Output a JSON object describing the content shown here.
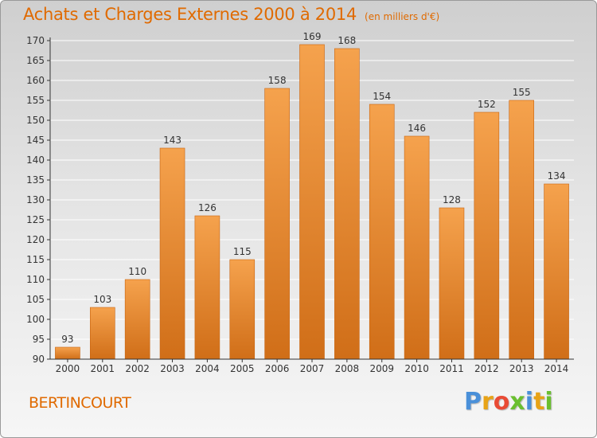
{
  "colors": {
    "accent": "#e06a00",
    "bar_light": "#f5a24d",
    "bar_dark": "#d06e18",
    "axis": "#333333",
    "grid": "#ffffff"
  },
  "chart_data": {
    "type": "bar",
    "title": "Achats et Charges Externes 2000 à 2014",
    "subtitle": "(en milliers d'€)",
    "categories": [
      "2000",
      "2001",
      "2002",
      "2003",
      "2004",
      "2005",
      "2006",
      "2007",
      "2008",
      "2009",
      "2010",
      "2011",
      "2012",
      "2013",
      "2014"
    ],
    "values": [
      93,
      103,
      110,
      143,
      126,
      115,
      158,
      169,
      168,
      154,
      146,
      128,
      152,
      155,
      134
    ],
    "ylim": [
      90,
      170
    ],
    "yticks": [
      90,
      95,
      100,
      105,
      110,
      115,
      120,
      125,
      130,
      135,
      140,
      145,
      150,
      155,
      160,
      165,
      170
    ],
    "grid": true,
    "data_labels": true
  },
  "footer": {
    "town": "BERTINCOURT",
    "logo_letters": [
      "P",
      "r",
      "o",
      "x",
      "i",
      "t",
      "i"
    ],
    "logo_colors": [
      "#4a90d9",
      "#e8a317",
      "#e94b35",
      "#6abf2f",
      "#4a90d9",
      "#e8a317",
      "#6abf2f"
    ]
  }
}
